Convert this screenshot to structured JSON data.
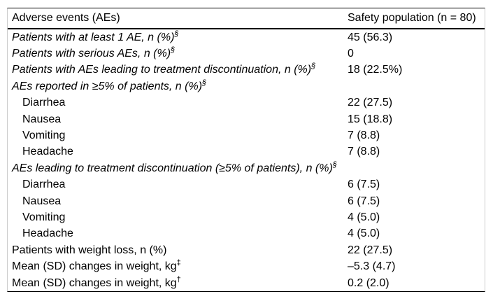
{
  "table": {
    "header": {
      "col1": "Adverse events (AEs)",
      "col2": "Safety population (n = 80)"
    },
    "rows": [
      {
        "label": "Patients with at least 1 AE, n (%)",
        "sup": "§",
        "value": "45 (56.3)",
        "italic": true,
        "indent": false
      },
      {
        "label": "Patients with serious AEs, n (%)",
        "sup": "§",
        "value": "0",
        "italic": true,
        "indent": false
      },
      {
        "label": "Patients with AEs leading to treatment discontinuation, n (%)",
        "sup": "§",
        "value": "18 (22.5%)",
        "italic": true,
        "indent": false
      },
      {
        "label": "AEs reported in ≥5% of patients, n (%)",
        "sup": "§",
        "value": "",
        "italic": true,
        "indent": false
      },
      {
        "label": "Diarrhea",
        "sup": "",
        "value": "22 (27.5)",
        "italic": false,
        "indent": true
      },
      {
        "label": "Nausea",
        "sup": "",
        "value": "15 (18.8)",
        "italic": false,
        "indent": true
      },
      {
        "label": "Vomiting",
        "sup": "",
        "value": "7 (8.8)",
        "italic": false,
        "indent": true
      },
      {
        "label": "Headache",
        "sup": "",
        "value": "7 (8.8)",
        "italic": false,
        "indent": true
      },
      {
        "label": "AEs leading to treatment discontinuation (≥5% of patients), n (%)",
        "sup": "§",
        "value": "",
        "italic": true,
        "indent": false
      },
      {
        "label": "Diarrhea",
        "sup": "",
        "value": "6 (7.5)",
        "italic": false,
        "indent": true
      },
      {
        "label": "Nausea",
        "sup": "",
        "value": "6 (7.5)",
        "italic": false,
        "indent": true
      },
      {
        "label": "Vomiting",
        "sup": "",
        "value": "4 (5.0)",
        "italic": false,
        "indent": true
      },
      {
        "label": "Headache",
        "sup": "",
        "value": "4 (5.0)",
        "italic": false,
        "indent": true
      },
      {
        "label": "Patients with weight loss, n (%)",
        "sup": "",
        "value": "22 (27.5)",
        "italic": false,
        "indent": false
      },
      {
        "label": "Mean (SD) changes in weight, kg",
        "sup": "‡",
        "value": "–5.3 (4.7)",
        "italic": false,
        "indent": false
      },
      {
        "label": "Mean (SD) changes in weight, kg",
        "sup": "†",
        "value": "0.2 (2.0)",
        "italic": false,
        "indent": false
      }
    ],
    "colors": {
      "rule": "#000000",
      "side_border": "#cccccc",
      "text": "#000000",
      "background": "#ffffff"
    }
  }
}
